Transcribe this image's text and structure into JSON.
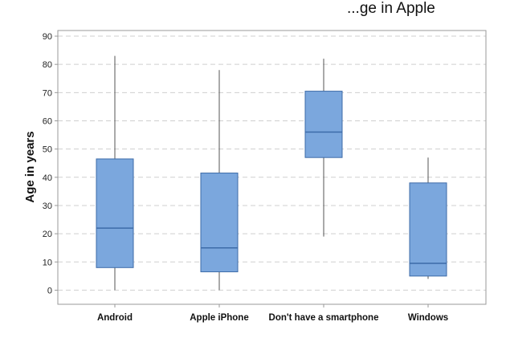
{
  "chart_data": {
    "type": "box",
    "title": "...ge in Apple",
    "xlabel": "",
    "ylabel": "Age in years",
    "ylim": [
      -5,
      92
    ],
    "yticks": [
      0,
      10,
      20,
      30,
      40,
      50,
      60,
      70,
      80,
      90
    ],
    "grid": true,
    "categories": [
      "Android",
      "Apple iPhone",
      "Don't have a smartphone",
      "Windows"
    ],
    "boxes": [
      {
        "category": "Android",
        "min": 0,
        "q1": 8,
        "median": 22,
        "q3": 46.5,
        "max": 83
      },
      {
        "category": "Apple iPhone",
        "min": 0,
        "q1": 6.5,
        "median": 15,
        "q3": 41.5,
        "max": 78
      },
      {
        "category": "Don't have a smartphone",
        "min": 19,
        "q1": 47,
        "median": 56,
        "q3": 70.5,
        "max": 82
      },
      {
        "category": "Windows",
        "min": 4,
        "q1": 5,
        "median": 9.5,
        "q3": 38,
        "max": 47
      }
    ],
    "colors": {
      "box_fill": "#7ba7dd",
      "box_stroke": "#3d6ba8",
      "whisker": "#555555",
      "grid": "#cfcfcf",
      "frame": "#9a9a9a"
    }
  }
}
